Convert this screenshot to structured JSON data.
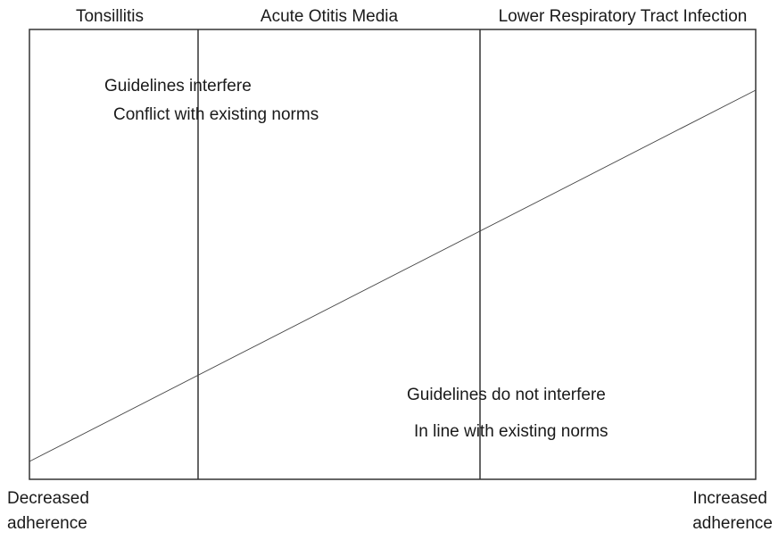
{
  "columns": [
    "Tonsillitis",
    "Acute Otitis Media",
    "Lower Respiratory Tract Infection"
  ],
  "upper_region": {
    "title": "Guidelines interfere",
    "subtitle": "Conflict with existing norms"
  },
  "lower_region": {
    "title": "Guidelines do not interfere",
    "subtitle": "In line with existing norms"
  },
  "axis": {
    "left": [
      "Decreased",
      "adherence"
    ],
    "right": [
      "Increased",
      "adherence"
    ]
  }
}
